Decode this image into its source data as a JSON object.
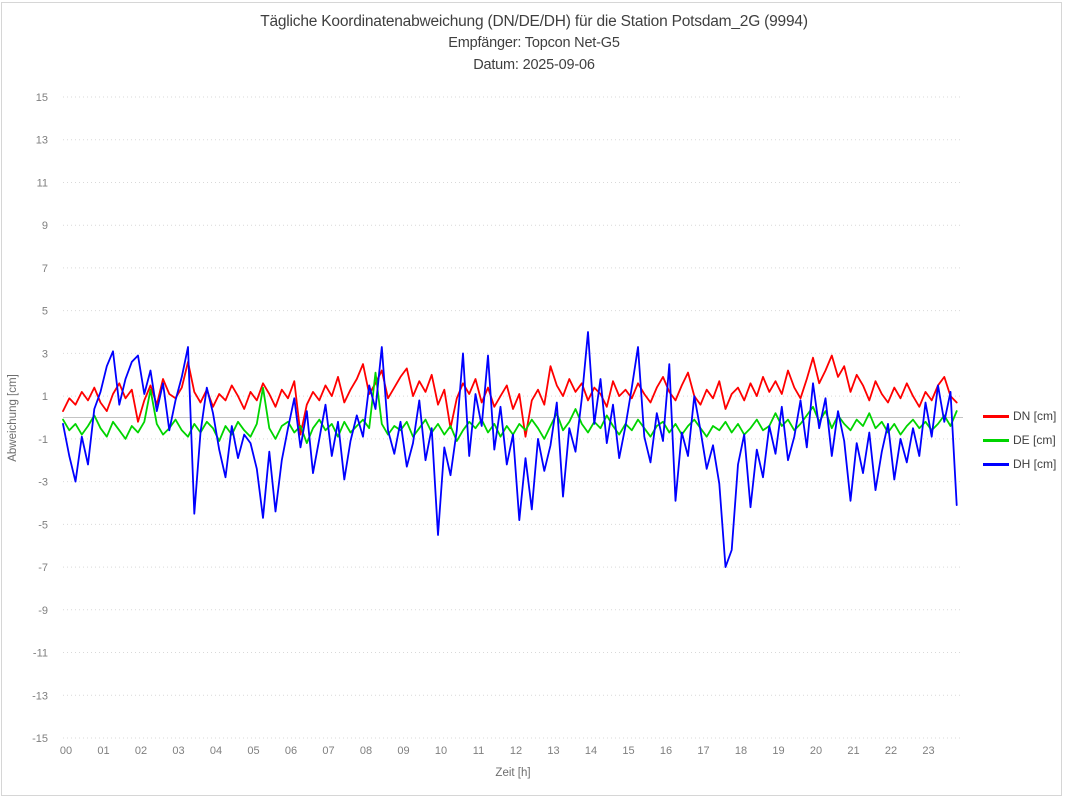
{
  "header": {
    "title": "Tägliche Koordinatenabweichung (DN/DE/DH) für die Station Potsdam_2G (9994)",
    "subtitle_receiver": "Empfänger: Topcon Net-G5",
    "subtitle_date": "Datum: 2025-09-06"
  },
  "colors": {
    "dn": "#ff0000",
    "de": "#00d400",
    "dh": "#0000ff",
    "grid": "#d9d9d9",
    "zero_line": "#c4c4c4",
    "tick_text": "#7f7f7f",
    "frame_border": "#d6d6d6"
  },
  "chart_data": {
    "type": "line",
    "title": "Tägliche Koordinatenabweichung (DN/DE/DH) für die Station Potsdam_2G (9994)",
    "subtitle": [
      "Empfänger: Topcon Net-G5",
      "Datum: 2025-09-06"
    ],
    "xlabel": "Zeit [h]",
    "ylabel": "Abweichung [cm]",
    "xlim": [
      0,
      24
    ],
    "ylim": [
      -15,
      15
    ],
    "xticks": [
      "00",
      "01",
      "02",
      "03",
      "04",
      "05",
      "06",
      "07",
      "08",
      "09",
      "10",
      "11",
      "12",
      "13",
      "14",
      "15",
      "16",
      "17",
      "18",
      "19",
      "20",
      "21",
      "22",
      "23"
    ],
    "yticks": [
      15,
      13,
      11,
      9,
      7,
      5,
      3,
      1,
      -1,
      -3,
      -5,
      -7,
      -9,
      -11,
      -13,
      -15
    ],
    "grid": "dotted horizontal lines at each y tick, solid line at 0",
    "legend_position": "right",
    "x_start_hour": 0,
    "x_step_minutes": 10,
    "series": [
      {
        "name": "DN [cm]",
        "color": "#ff0000",
        "values": [
          0.3,
          0.9,
          0.6,
          1.2,
          0.8,
          1.4,
          0.7,
          0.3,
          1.1,
          1.6,
          0.9,
          1.3,
          -0.2,
          0.8,
          1.5,
          0.6,
          1.8,
          1.1,
          0.9,
          1.4,
          2.6,
          1.2,
          0.7,
          1.3,
          0.5,
          1.1,
          0.8,
          1.5,
          1.0,
          0.4,
          1.2,
          0.8,
          1.6,
          1.1,
          0.5,
          1.3,
          0.9,
          1.7,
          -0.8,
          0.6,
          1.2,
          0.8,
          1.5,
          1.0,
          1.9,
          0.7,
          1.3,
          1.8,
          2.5,
          1.1,
          1.6,
          2.2,
          0.9,
          1.4,
          1.9,
          2.3,
          1.0,
          1.7,
          1.2,
          2.0,
          0.6,
          1.3,
          -0.5,
          0.9,
          1.6,
          1.1,
          1.8,
          0.7,
          1.4,
          0.5,
          1.0,
          1.5,
          0.4,
          1.1,
          -0.9,
          0.8,
          1.3,
          0.6,
          2.4,
          1.5,
          1.0,
          1.8,
          1.2,
          1.6,
          0.8,
          1.4,
          1.1,
          0.5,
          1.7,
          1.0,
          1.3,
          0.9,
          1.6,
          1.1,
          0.7,
          1.4,
          1.9,
          1.2,
          0.8,
          1.5,
          2.1,
          1.0,
          0.6,
          1.3,
          0.9,
          1.7,
          0.4,
          1.1,
          1.4,
          0.8,
          1.6,
          1.0,
          1.9,
          1.2,
          1.7,
          1.1,
          2.2,
          1.4,
          0.9,
          1.8,
          2.8,
          1.6,
          2.2,
          2.9,
          1.9,
          2.4,
          1.2,
          2.0,
          1.5,
          0.8,
          1.7,
          1.1,
          0.7,
          1.4,
          0.9,
          1.6,
          1.0,
          0.5,
          1.2,
          0.8,
          1.5,
          1.9,
          1.0,
          0.7
        ]
      },
      {
        "name": "DE [cm]",
        "color": "#00d400",
        "values": [
          -0.1,
          -0.6,
          -0.3,
          -0.8,
          -0.4,
          0.1,
          -0.5,
          -0.9,
          -0.2,
          -0.6,
          -1.0,
          -0.4,
          -0.7,
          -0.2,
          1.3,
          -0.3,
          -0.8,
          -0.5,
          -0.1,
          -0.6,
          -0.9,
          -0.3,
          -0.7,
          -0.2,
          -0.5,
          -1.1,
          -0.4,
          -0.8,
          -0.2,
          -0.6,
          -0.9,
          -0.3,
          1.4,
          -0.5,
          -1.0,
          -0.4,
          -0.2,
          -0.7,
          -0.4,
          -1.2,
          -0.5,
          -0.1,
          -0.6,
          -0.3,
          -0.9,
          -0.2,
          -0.7,
          -0.4,
          -0.1,
          -0.5,
          2.1,
          -0.3,
          -0.8,
          -0.4,
          -0.6,
          -0.2,
          -0.9,
          -0.5,
          -0.1,
          -0.7,
          -0.3,
          -0.8,
          -0.4,
          -1.1,
          -0.6,
          -0.2,
          -0.5,
          -0.1,
          -0.7,
          -0.3,
          -0.9,
          -0.4,
          -0.8,
          -0.3,
          -0.6,
          -0.1,
          -0.5,
          -1.0,
          -0.4,
          0.2,
          -0.6,
          -0.2,
          0.4,
          -0.3,
          -0.7,
          -0.2,
          -0.5,
          0.1,
          -0.4,
          -0.8,
          -0.3,
          -0.6,
          -0.1,
          -0.5,
          -0.9,
          -0.4,
          -0.2,
          -0.7,
          -0.3,
          -0.8,
          -0.4,
          -0.1,
          -0.5,
          -0.9,
          -0.4,
          -0.6,
          -0.2,
          -0.7,
          -0.3,
          -0.8,
          -0.5,
          -0.1,
          -0.6,
          -0.4,
          0.2,
          -0.4,
          -0.1,
          -0.6,
          -0.3,
          0.1,
          0.5,
          -0.2,
          0.3,
          -0.5,
          0.1,
          -0.3,
          -0.6,
          -0.1,
          -0.4,
          0.2,
          -0.5,
          -0.2,
          -0.7,
          -0.3,
          -0.8,
          -0.4,
          -0.1,
          -0.5,
          -0.2,
          -0.6,
          -0.3,
          0.1,
          -0.4,
          0.3
        ]
      },
      {
        "name": "DH [cm]",
        "color": "#0000ff",
        "values": [
          -0.3,
          -1.8,
          -3.0,
          -0.9,
          -2.2,
          0.4,
          1.2,
          2.4,
          3.1,
          0.6,
          1.8,
          2.6,
          2.9,
          1.1,
          2.2,
          0.3,
          1.6,
          -0.6,
          0.8,
          1.9,
          3.3,
          -4.5,
          -0.7,
          1.4,
          0.2,
          -1.5,
          -2.8,
          -0.4,
          -1.9,
          -0.8,
          -1.2,
          -2.4,
          -4.7,
          -1.6,
          -4.4,
          -2.0,
          -0.5,
          0.9,
          -1.4,
          0.3,
          -2.6,
          -1.0,
          0.6,
          -1.8,
          -0.2,
          -2.9,
          -1.1,
          0.1,
          -0.9,
          1.5,
          0.4,
          3.3,
          -0.6,
          -1.7,
          -0.2,
          -2.3,
          -1.2,
          0.8,
          -2.0,
          -0.5,
          -5.5,
          -1.4,
          -2.7,
          -0.6,
          3.0,
          -1.8,
          1.1,
          -0.4,
          2.9,
          -1.5,
          0.5,
          -2.2,
          -0.8,
          -4.8,
          -1.9,
          -4.3,
          -1.0,
          -2.5,
          -1.3,
          0.7,
          -3.7,
          -0.5,
          -1.6,
          0.9,
          4.0,
          -0.3,
          1.8,
          -1.2,
          0.6,
          -1.9,
          -0.4,
          1.4,
          3.3,
          -0.9,
          -2.1,
          0.2,
          -1.1,
          2.5,
          -3.9,
          -0.7,
          -1.8,
          1.0,
          -0.6,
          -2.4,
          -1.3,
          -3.1,
          -7.0,
          -6.2,
          -2.2,
          -0.8,
          -4.2,
          -1.5,
          -2.8,
          -0.4,
          -1.7,
          0.5,
          -2.0,
          -0.9,
          0.8,
          -1.4,
          1.6,
          -0.5,
          0.9,
          -1.8,
          0.3,
          -1.1,
          -3.9,
          -1.2,
          -2.6,
          -0.7,
          -3.4,
          -1.6,
          -0.3,
          -2.9,
          -1.0,
          -2.1,
          -0.5,
          -1.8,
          0.7,
          -0.9,
          1.5,
          -0.2,
          1.2,
          -4.1
        ]
      }
    ]
  }
}
